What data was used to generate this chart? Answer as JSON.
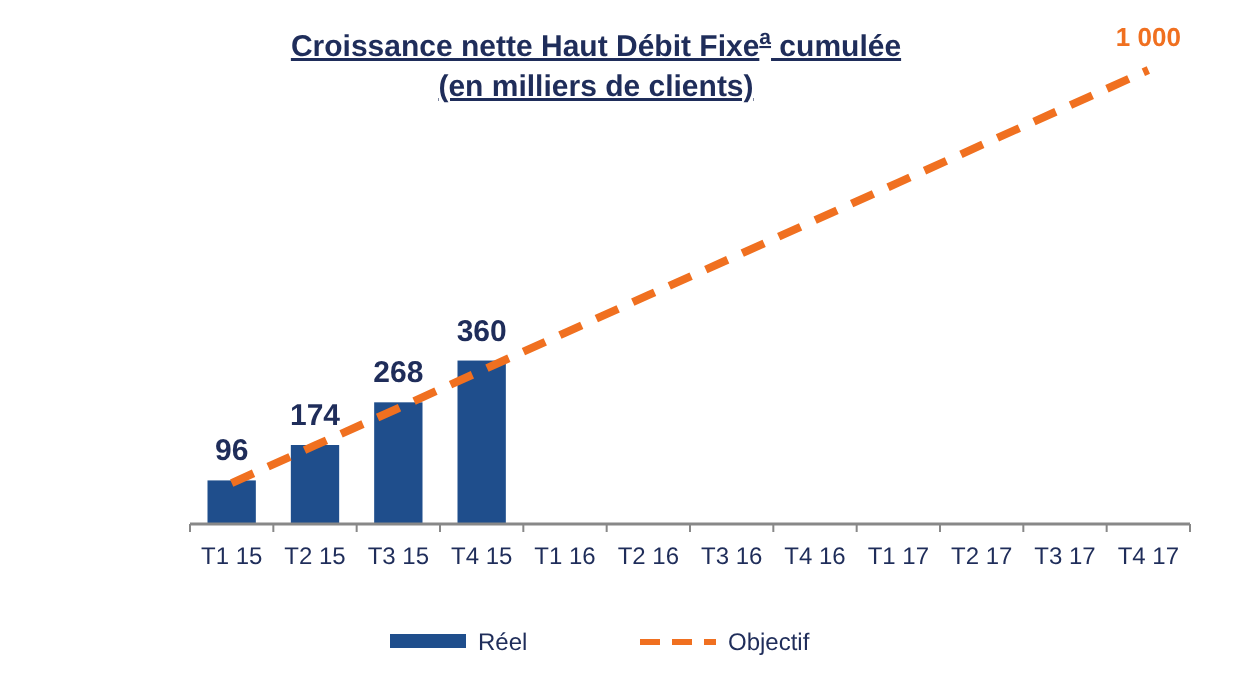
{
  "chart_data": {
    "type": "bar",
    "title": "Croissance nette Haut Débit Fixe$^{a}$ cumulée",
    "subtitle": "(en milliers de clients)",
    "categories": [
      "T1 15",
      "T2 15",
      "T3 15",
      "T4 15",
      "T1 16",
      "T2 16",
      "T3 16",
      "T4 16",
      "T1 17",
      "T2 17",
      "T3 17",
      "T4 17"
    ],
    "series": [
      {
        "name": "Réel",
        "color": "#1f4e8c",
        "values": [
          96,
          174,
          268,
          360,
          null,
          null,
          null,
          null,
          null,
          null,
          null,
          null
        ],
        "value_labels": [
          "96",
          "174",
          "268",
          "360",
          null,
          null,
          null,
          null,
          null,
          null,
          null,
          null
        ]
      },
      {
        "name": "Objectif",
        "type": "line",
        "color": "#f07020",
        "line_style": "dashed",
        "values": [
          90,
          173,
          255,
          338,
          421,
          504,
          586,
          669,
          752,
          835,
          917,
          1000
        ],
        "value_labels": [
          null,
          null,
          null,
          null,
          null,
          null,
          null,
          null,
          null,
          null,
          null,
          "1 000"
        ]
      }
    ],
    "legend": "bottom"
  }
}
